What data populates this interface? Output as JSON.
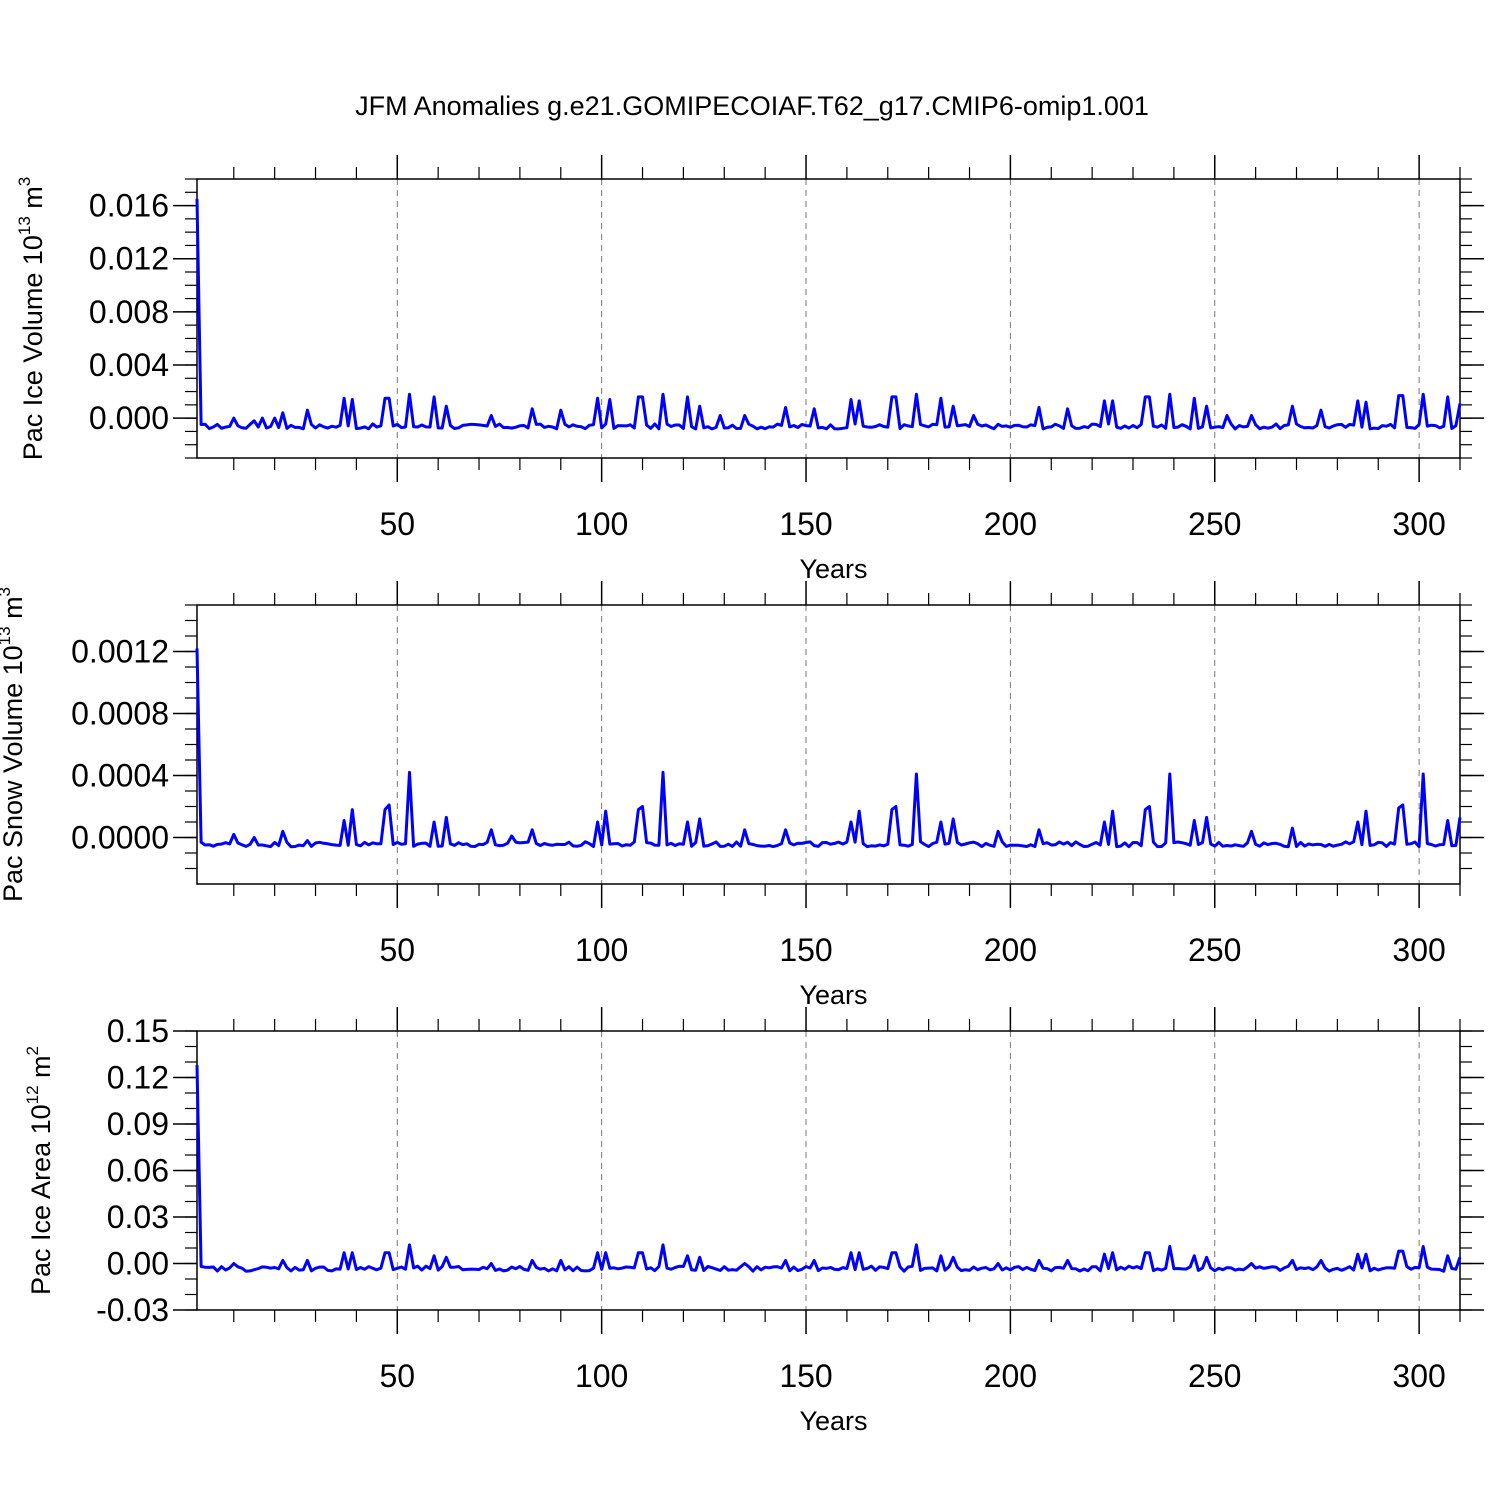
{
  "title": "JFM Anomalies g.e21.GOMIPECOIAF.T62_g17.CMIP6-omip1.001",
  "chart_data": [
    {
      "type": "line",
      "xlabel": "Years",
      "ylabel": {
        "main": "Pac Ice Volume 10",
        "sup": "13",
        "unit": " m",
        "unit_sup": "3"
      },
      "xlim": [
        1,
        310
      ],
      "ylim": [
        -0.003,
        0.018
      ],
      "yticks": [
        0.0,
        0.004,
        0.008,
        0.012,
        0.016
      ],
      "yticklabels": [
        "0.000",
        "0.004",
        "0.008",
        "0.012",
        "0.016"
      ],
      "yminor": 0.001,
      "xticks": [
        50,
        100,
        150,
        200,
        250,
        300
      ],
      "xticklabels": [
        "50",
        "100",
        "150",
        "200",
        "250",
        "300"
      ],
      "line_color": "#0000ff",
      "grid": "vertical-dashed",
      "start": 0.0165,
      "base": -0.0007,
      "spikes": [
        [
          10,
          0.0
        ],
        [
          15,
          -0.0002
        ],
        [
          17,
          0.0
        ],
        [
          20,
          0.0
        ],
        [
          22,
          0.0004
        ],
        [
          28,
          0.0006
        ],
        [
          37,
          0.0015
        ],
        [
          39,
          0.0014
        ],
        [
          47,
          0.0015
        ],
        [
          48,
          0.0015
        ],
        [
          53,
          0.0018
        ],
        [
          59,
          0.0016
        ],
        [
          62,
          0.0009
        ],
        [
          73,
          0.0002
        ],
        [
          83,
          0.0007
        ],
        [
          90,
          0.0006
        ],
        [
          99,
          0.0015
        ],
        [
          102,
          0.0014
        ],
        [
          109,
          0.0016
        ],
        [
          110,
          0.0016
        ],
        [
          115,
          0.0018
        ],
        [
          121,
          0.0016
        ],
        [
          124,
          0.0009
        ],
        [
          129,
          0.0002
        ],
        [
          135,
          0.0002
        ],
        [
          145,
          0.0008
        ],
        [
          152,
          0.0007
        ],
        [
          161,
          0.0014
        ],
        [
          163,
          0.0013
        ],
        [
          171,
          0.0016
        ],
        [
          172,
          0.0016
        ],
        [
          177,
          0.0018
        ],
        [
          183,
          0.0015
        ],
        [
          186,
          0.0009
        ],
        [
          191,
          0.0002
        ],
        [
          207,
          0.0008
        ],
        [
          214,
          0.0007
        ],
        [
          223,
          0.0013
        ],
        [
          225,
          0.0013
        ],
        [
          233,
          0.0016
        ],
        [
          234,
          0.0016
        ],
        [
          239,
          0.0018
        ],
        [
          245,
          0.0015
        ],
        [
          248,
          0.0009
        ],
        [
          253,
          0.0002
        ],
        [
          259,
          0.0002
        ],
        [
          269,
          0.0009
        ],
        [
          276,
          0.0006
        ],
        [
          285,
          0.0013
        ],
        [
          287,
          0.0012
        ],
        [
          295,
          0.0017
        ],
        [
          296,
          0.0017
        ],
        [
          301,
          0.0018
        ],
        [
          307,
          0.0016
        ],
        [
          310,
          0.0011
        ]
      ]
    },
    {
      "type": "line",
      "xlabel": "Years",
      "ylabel": {
        "main": "Pac Snow Volume 10",
        "sup": "13",
        "unit": " m",
        "unit_sup": "3"
      },
      "xlim": [
        1,
        310
      ],
      "ylim": [
        -0.0003,
        0.0015
      ],
      "yticks": [
        0.0,
        0.0004,
        0.0008,
        0.0012
      ],
      "yticklabels": [
        "0.0000",
        "0.0004",
        "0.0008",
        "0.0012"
      ],
      "yminor": 0.0001,
      "xticks": [
        50,
        100,
        150,
        200,
        250,
        300
      ],
      "xticklabels": [
        "50",
        "100",
        "150",
        "200",
        "250",
        "300"
      ],
      "line_color": "#0000ff",
      "grid": "vertical-dashed",
      "start": 0.00122,
      "base": -5e-05,
      "spikes": [
        [
          10,
          2e-05
        ],
        [
          15,
          0.0
        ],
        [
          22,
          4e-05
        ],
        [
          28,
          -2e-05
        ],
        [
          37,
          0.00011
        ],
        [
          39,
          0.00018
        ],
        [
          47,
          0.00018
        ],
        [
          48,
          0.00021
        ],
        [
          53,
          0.00042
        ],
        [
          59,
          0.0001
        ],
        [
          62,
          0.00013
        ],
        [
          73,
          5e-05
        ],
        [
          78,
          1e-05
        ],
        [
          83,
          5e-05
        ],
        [
          99,
          0.0001
        ],
        [
          101,
          0.00017
        ],
        [
          109,
          0.00018
        ],
        [
          110,
          0.0002
        ],
        [
          115,
          0.00042
        ],
        [
          121,
          0.0001
        ],
        [
          124,
          0.00012
        ],
        [
          135,
          5e-05
        ],
        [
          145,
          5e-05
        ],
        [
          161,
          0.0001
        ],
        [
          163,
          0.00017
        ],
        [
          171,
          0.00018
        ],
        [
          172,
          0.0002
        ],
        [
          177,
          0.00041
        ],
        [
          183,
          0.0001
        ],
        [
          186,
          0.00012
        ],
        [
          197,
          4e-05
        ],
        [
          207,
          5e-05
        ],
        [
          223,
          0.0001
        ],
        [
          225,
          0.00017
        ],
        [
          233,
          0.00018
        ],
        [
          234,
          0.0002
        ],
        [
          239,
          0.00041
        ],
        [
          245,
          0.00011
        ],
        [
          248,
          0.00013
        ],
        [
          259,
          4e-05
        ],
        [
          269,
          6e-05
        ],
        [
          285,
          0.0001
        ],
        [
          287,
          0.00017
        ],
        [
          295,
          0.00019
        ],
        [
          296,
          0.00021
        ],
        [
          301,
          0.00041
        ],
        [
          307,
          0.00011
        ],
        [
          310,
          0.00013
        ]
      ]
    },
    {
      "type": "line",
      "xlabel": "Years",
      "ylabel": {
        "main": "Pac Ice Area 10",
        "sup": "12",
        "unit": " m",
        "unit_sup": "2"
      },
      "xlim": [
        1,
        310
      ],
      "ylim": [
        -0.03,
        0.15
      ],
      "yticks": [
        -0.03,
        0.0,
        0.03,
        0.06,
        0.09,
        0.12,
        0.15
      ],
      "yticklabels": [
        "-0.03",
        "0.00",
        "0.03",
        "0.06",
        "0.09",
        "0.12",
        "0.15"
      ],
      "yminor": 0.01,
      "xticks": [
        50,
        100,
        150,
        200,
        250,
        300
      ],
      "xticklabels": [
        "50",
        "100",
        "150",
        "200",
        "250",
        "300"
      ],
      "line_color": "#0000ff",
      "grid": "vertical-dashed",
      "start": 0.128,
      "base": -0.004,
      "spikes": [
        [
          10,
          0.0
        ],
        [
          22,
          0.002
        ],
        [
          28,
          0.002
        ],
        [
          37,
          0.007
        ],
        [
          39,
          0.007
        ],
        [
          47,
          0.007
        ],
        [
          48,
          0.007
        ],
        [
          53,
          0.012
        ],
        [
          59,
          0.005
        ],
        [
          62,
          0.004
        ],
        [
          73,
          0.0
        ],
        [
          83,
          0.002
        ],
        [
          90,
          0.002
        ],
        [
          99,
          0.007
        ],
        [
          101,
          0.007
        ],
        [
          109,
          0.007
        ],
        [
          110,
          0.007
        ],
        [
          115,
          0.012
        ],
        [
          121,
          0.005
        ],
        [
          124,
          0.004
        ],
        [
          135,
          0.0
        ],
        [
          145,
          0.002
        ],
        [
          152,
          0.002
        ],
        [
          161,
          0.007
        ],
        [
          163,
          0.007
        ],
        [
          171,
          0.007
        ],
        [
          172,
          0.007
        ],
        [
          177,
          0.012
        ],
        [
          183,
          0.005
        ],
        [
          186,
          0.004
        ],
        [
          197,
          0.0
        ],
        [
          207,
          0.002
        ],
        [
          214,
          0.002
        ],
        [
          223,
          0.006
        ],
        [
          225,
          0.007
        ],
        [
          233,
          0.007
        ],
        [
          234,
          0.007
        ],
        [
          239,
          0.011
        ],
        [
          245,
          0.005
        ],
        [
          248,
          0.004
        ],
        [
          259,
          0.0
        ],
        [
          269,
          0.002
        ],
        [
          276,
          0.002
        ],
        [
          285,
          0.006
        ],
        [
          287,
          0.006
        ],
        [
          295,
          0.008
        ],
        [
          296,
          0.008
        ],
        [
          301,
          0.011
        ],
        [
          307,
          0.005
        ],
        [
          310,
          0.004
        ]
      ]
    }
  ]
}
